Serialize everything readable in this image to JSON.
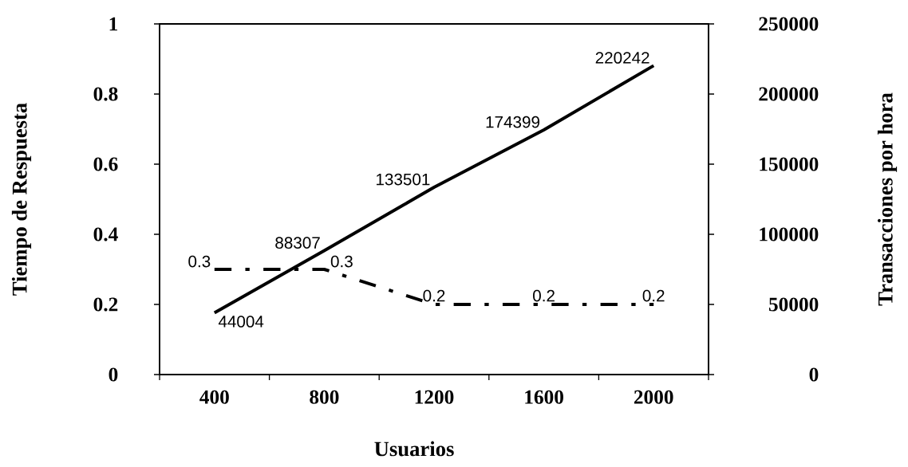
{
  "chart_data": {
    "type": "line",
    "xlabel": "Usuarios",
    "ylabel": "Tiempo de Respuesta",
    "y2label": "Transacciones por hora",
    "categories": [
      "400",
      "800",
      "1200",
      "1600",
      "2000"
    ],
    "series": [
      {
        "color": "#000000",
        "values": [
          0.3,
          0.3,
          0.2,
          0.2,
          0.2
        ],
        "line_style": "dashed",
        "axis": "y"
      },
      {
        "color": "#000000",
        "values": [
          44004,
          88307,
          133501,
          174399,
          220242
        ],
        "line_style": "solid",
        "axis": "y2"
      }
    ],
    "ylim": [
      0,
      1
    ],
    "yticks": [
      0,
      0.2,
      0.4,
      0.6,
      0.8,
      1
    ],
    "y2lim": [
      0,
      250000
    ],
    "y2ticks": [
      0,
      50000,
      100000,
      150000,
      200000,
      250000
    ],
    "data_labels": true,
    "marker": "none"
  }
}
